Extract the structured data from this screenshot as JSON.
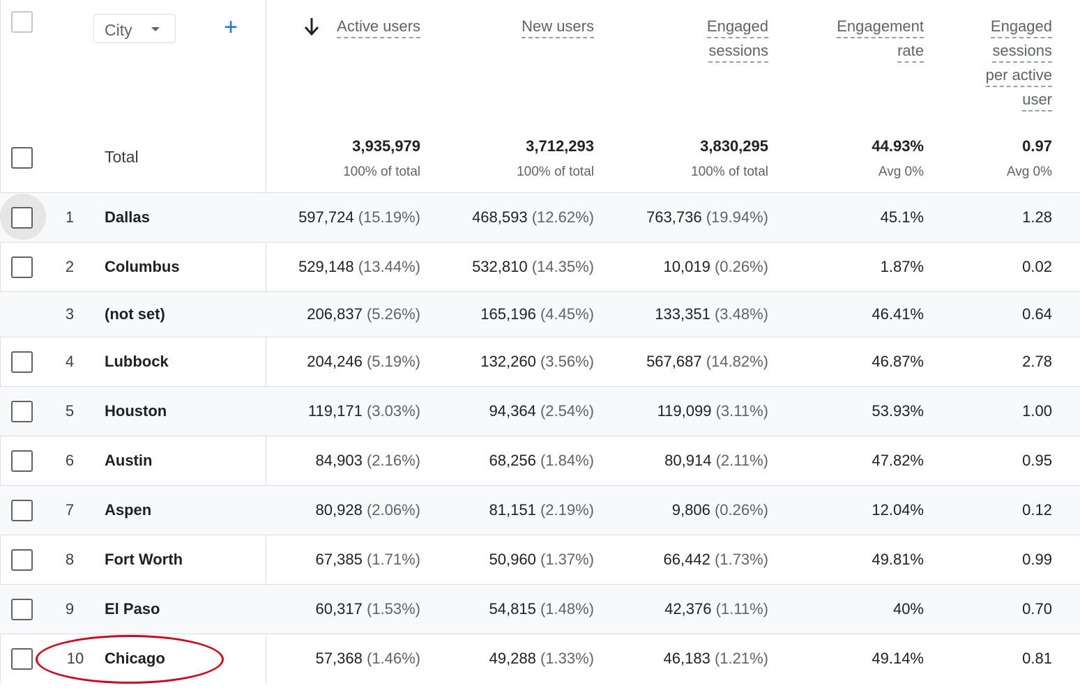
{
  "controls": {
    "dimension_label": "City",
    "add_dimension_glyph": "+"
  },
  "columns": [
    {
      "key": "active_users",
      "lines": [
        "Active users"
      ],
      "sorted": true
    },
    {
      "key": "new_users",
      "lines": [
        "New users"
      ],
      "sorted": false
    },
    {
      "key": "engaged_sessions",
      "lines": [
        "Engaged",
        "sessions"
      ],
      "sorted": false
    },
    {
      "key": "engagement_rate",
      "lines": [
        "Engagement",
        "rate"
      ],
      "sorted": false
    },
    {
      "key": "engaged_sessions_per_active_user",
      "lines": [
        "Engaged",
        "sessions",
        "per active",
        "user"
      ],
      "sorted": false
    }
  ],
  "totals": {
    "label": "Total",
    "values": [
      "3,935,979",
      "3,712,293",
      "3,830,295",
      "44.93%",
      "0.97"
    ],
    "subtexts": [
      "100% of total",
      "100% of total",
      "100% of total",
      "Avg 0%",
      "Avg 0%"
    ]
  },
  "rows": [
    {
      "rank": "1",
      "city": "Dallas",
      "has_checkbox": true,
      "cells": [
        [
          "597,724",
          "(15.19%)"
        ],
        [
          "468,593",
          "(12.62%)"
        ],
        [
          "763,736",
          "(19.94%)"
        ],
        [
          "45.1%",
          ""
        ],
        [
          "1.28",
          ""
        ]
      ]
    },
    {
      "rank": "2",
      "city": "Columbus",
      "has_checkbox": true,
      "cells": [
        [
          "529,148",
          "(13.44%)"
        ],
        [
          "532,810",
          "(14.35%)"
        ],
        [
          "10,019",
          "(0.26%)"
        ],
        [
          "1.87%",
          ""
        ],
        [
          "0.02",
          ""
        ]
      ]
    },
    {
      "rank": "3",
      "city": "(not set)",
      "has_checkbox": false,
      "cells": [
        [
          "206,837",
          "(5.26%)"
        ],
        [
          "165,196",
          "(4.45%)"
        ],
        [
          "133,351",
          "(3.48%)"
        ],
        [
          "46.41%",
          ""
        ],
        [
          "0.64",
          ""
        ]
      ]
    },
    {
      "rank": "4",
      "city": "Lubbock",
      "has_checkbox": true,
      "cells": [
        [
          "204,246",
          "(5.19%)"
        ],
        [
          "132,260",
          "(3.56%)"
        ],
        [
          "567,687",
          "(14.82%)"
        ],
        [
          "46.87%",
          ""
        ],
        [
          "2.78",
          ""
        ]
      ]
    },
    {
      "rank": "5",
      "city": "Houston",
      "has_checkbox": true,
      "cells": [
        [
          "119,171",
          "(3.03%)"
        ],
        [
          "94,364",
          "(2.54%)"
        ],
        [
          "119,099",
          "(3.11%)"
        ],
        [
          "53.93%",
          ""
        ],
        [
          "1.00",
          ""
        ]
      ]
    },
    {
      "rank": "6",
      "city": "Austin",
      "has_checkbox": true,
      "cells": [
        [
          "84,903",
          "(2.16%)"
        ],
        [
          "68,256",
          "(1.84%)"
        ],
        [
          "80,914",
          "(2.11%)"
        ],
        [
          "47.82%",
          ""
        ],
        [
          "0.95",
          ""
        ]
      ]
    },
    {
      "rank": "7",
      "city": "Aspen",
      "has_checkbox": true,
      "cells": [
        [
          "80,928",
          "(2.06%)"
        ],
        [
          "81,151",
          "(2.19%)"
        ],
        [
          "9,806",
          "(0.26%)"
        ],
        [
          "12.04%",
          ""
        ],
        [
          "0.12",
          ""
        ]
      ]
    },
    {
      "rank": "8",
      "city": "Fort Worth",
      "has_checkbox": true,
      "cells": [
        [
          "67,385",
          "(1.71%)"
        ],
        [
          "50,960",
          "(1.37%)"
        ],
        [
          "66,442",
          "(1.73%)"
        ],
        [
          "49.81%",
          ""
        ],
        [
          "0.99",
          ""
        ]
      ]
    },
    {
      "rank": "9",
      "city": "El Paso",
      "has_checkbox": true,
      "cells": [
        [
          "60,317",
          "(1.53%)"
        ],
        [
          "54,815",
          "(1.48%)"
        ],
        [
          "42,376",
          "(1.11%)"
        ],
        [
          "40%",
          ""
        ],
        [
          "0.70",
          ""
        ]
      ]
    },
    {
      "rank": "10",
      "city": "Chicago",
      "has_checkbox": true,
      "cells": [
        [
          "57,368",
          "(1.46%)"
        ],
        [
          "49,288",
          "(1.33%)"
        ],
        [
          "46,183",
          "(1.21%)"
        ],
        [
          "49.14%",
          ""
        ],
        [
          "0.81",
          ""
        ]
      ]
    }
  ],
  "annotation": {
    "highlighted_city": "Chicago",
    "ring_color": "#d0021b"
  },
  "colors": {
    "accent": "#1a73e8",
    "row_shade": "#f8f9fa",
    "divider": "#dadce0"
  }
}
